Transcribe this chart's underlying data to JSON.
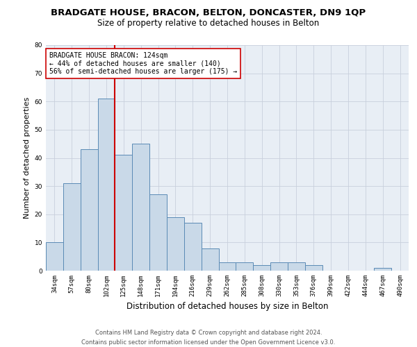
{
  "title": "BRADGATE HOUSE, BRACON, BELTON, DONCASTER, DN9 1QP",
  "subtitle": "Size of property relative to detached houses in Belton",
  "xlabel": "Distribution of detached houses by size in Belton",
  "ylabel": "Number of detached properties",
  "bar_labels": [
    "34sqm",
    "57sqm",
    "80sqm",
    "102sqm",
    "125sqm",
    "148sqm",
    "171sqm",
    "194sqm",
    "216sqm",
    "239sqm",
    "262sqm",
    "285sqm",
    "308sqm",
    "330sqm",
    "353sqm",
    "376sqm",
    "399sqm",
    "422sqm",
    "444sqm",
    "467sqm",
    "490sqm"
  ],
  "bar_values": [
    10,
    31,
    43,
    61,
    41,
    45,
    27,
    19,
    17,
    8,
    3,
    3,
    2,
    3,
    3,
    2,
    0,
    0,
    0,
    1,
    0
  ],
  "bar_color": "#c9d9e8",
  "bar_edge_color": "#5a8ab5",
  "vline_color": "#cc0000",
  "annotation_text": "BRADGATE HOUSE BRACON: 124sqm\n← 44% of detached houses are smaller (140)\n56% of semi-detached houses are larger (175) →",
  "annotation_box_color": "white",
  "annotation_box_edge": "#cc0000",
  "ylim": [
    0,
    80
  ],
  "yticks": [
    0,
    10,
    20,
    30,
    40,
    50,
    60,
    70,
    80
  ],
  "grid_color": "#c8d0dc",
  "background_color": "#e8eef5",
  "footer_line1": "Contains HM Land Registry data © Crown copyright and database right 2024.",
  "footer_line2": "Contains public sector information licensed under the Open Government Licence v3.0.",
  "title_fontsize": 9.5,
  "subtitle_fontsize": 8.5,
  "xlabel_fontsize": 8.5,
  "ylabel_fontsize": 8,
  "tick_fontsize": 6.5,
  "annotation_fontsize": 7,
  "footer_fontsize": 6
}
